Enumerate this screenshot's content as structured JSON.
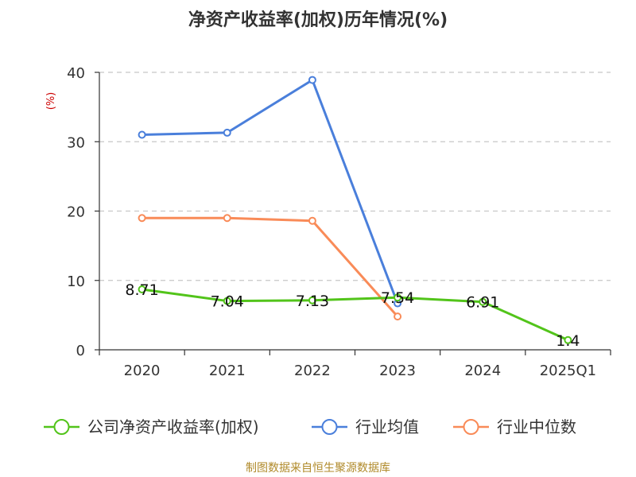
{
  "chart_data": {
    "type": "line",
    "title": "净资产收益率(加权)历年情况(%)",
    "ylabel": "(%)",
    "xlabel": "",
    "ylim": [
      0,
      40
    ],
    "yticks": [
      0,
      10,
      20,
      30,
      40
    ],
    "categories": [
      "2020",
      "2021",
      "2022",
      "2023",
      "2024",
      "2025Q1"
    ],
    "grid": true,
    "legend_position": "bottom",
    "series": [
      {
        "name": "公司净资产收益率(加权)",
        "color": "#52c41a",
        "values": [
          8.71,
          7.04,
          7.13,
          7.54,
          6.91,
          1.4
        ],
        "labels": [
          "8.71",
          "7.04",
          "7.13",
          "7.54",
          "6.91",
          "1.4"
        ]
      },
      {
        "name": "行业均值",
        "color": "#4a7fdb",
        "values": [
          31.0,
          31.3,
          38.9,
          6.7,
          null,
          null
        ]
      },
      {
        "name": "行业中位数",
        "color": "#f98b58",
        "values": [
          19.0,
          19.0,
          18.6,
          4.8,
          null,
          null
        ]
      }
    ]
  },
  "source": "制图数据来自恒生聚源数据库"
}
